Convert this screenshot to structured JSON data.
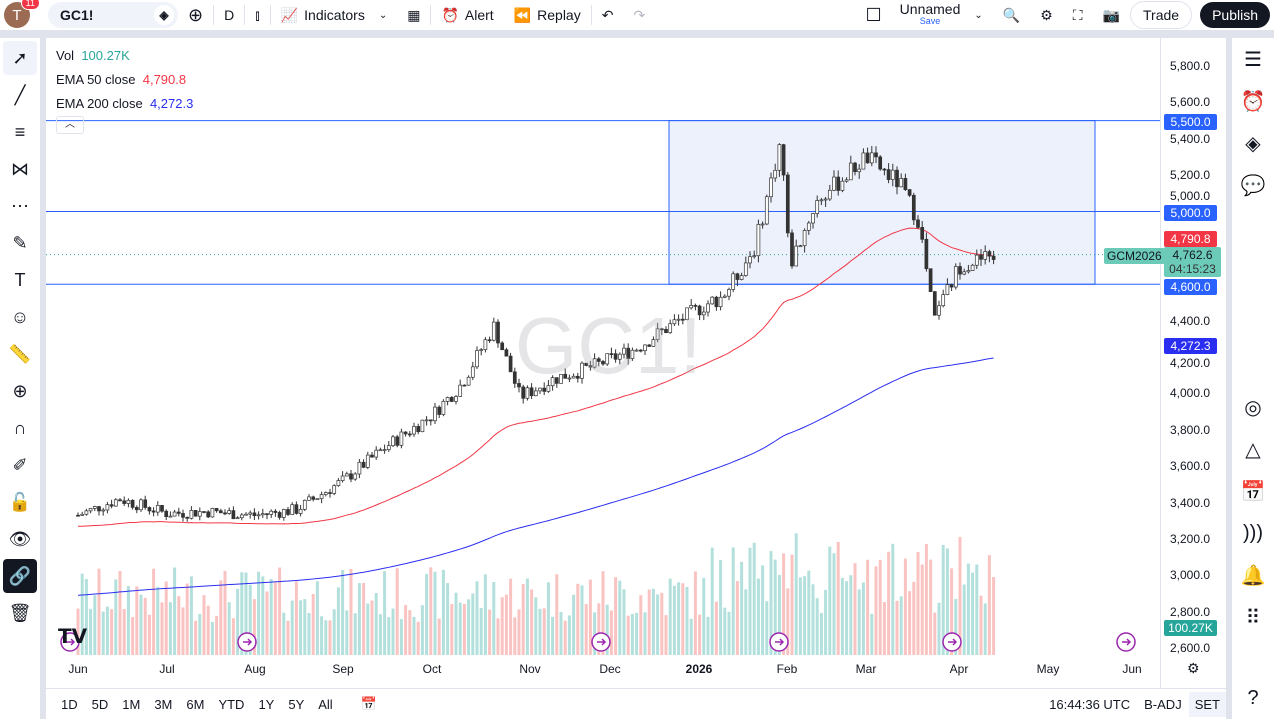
{
  "header": {
    "avatar_letter": "T",
    "notif_count": "11",
    "symbol": "GC1!",
    "interval": "D",
    "indicators": "Indicators",
    "alert": "Alert",
    "replay": "Replay",
    "layout_name": "Unnamed",
    "save": "Save",
    "trade": "Trade",
    "publish": "Publish"
  },
  "legend": {
    "vol_label": "Vol",
    "vol_value": "100.27K",
    "ema50_label": "EMA 50 close",
    "ema50_value": "4,790.8",
    "ema200_label": "EMA 200 close",
    "ema200_value": "4,272.3"
  },
  "watermark": "GC1!",
  "colors": {
    "up": "#26a69a",
    "down": "#ef5350",
    "ema50": "#f23645",
    "ema200": "#2a2ef0",
    "hline": "#2962ff",
    "box_fill": "#e8edfb"
  },
  "price_axis": {
    "ticks": [
      "5,800.0",
      "5,600.0",
      "5,400.0",
      "5,200.0",
      "5,000.0",
      "4,400.0",
      "4,200.0",
      "4,000.0",
      "3,800.0",
      "3,600.0",
      "3,400.0",
      "3,200.0",
      "3,000.0",
      "2,800.0",
      "2,600.0"
    ],
    "labels": {
      "l5500": "5,500.0",
      "l5000": "5,000.0",
      "ema50": "4,790.8",
      "contract": "GCM2026",
      "last": "4,762.6",
      "countdown": "04:15:23",
      "l4600": "4,600.0",
      "ema200": "4,272.3",
      "vol": "100.27K"
    }
  },
  "time_axis": [
    "Jun",
    "Jul",
    "Aug",
    "Sep",
    "Oct",
    "Nov",
    "Dec",
    "2026",
    "Feb",
    "Mar",
    "Apr",
    "May",
    "Jun"
  ],
  "bottom": {
    "ranges": [
      "1D",
      "5D",
      "1M",
      "3M",
      "6M",
      "YTD",
      "1Y",
      "5Y",
      "All"
    ],
    "clock": "16:44:36 UTC",
    "badj": "B-ADJ",
    "set": "SET"
  },
  "chart_data": {
    "type": "candlestick",
    "symbol": "GC1!",
    "ylim": [
      2600,
      5800
    ],
    "key_closes": [
      [
        "Jun 1",
        3330
      ],
      [
        "Jun 15",
        3420
      ],
      [
        "Jul 1",
        3340
      ],
      [
        "Jul 15",
        3350
      ],
      [
        "Aug 1",
        3330
      ],
      [
        "Aug 15",
        3360
      ],
      [
        "Sep 1",
        3520
      ],
      [
        "Sep 15",
        3700
      ],
      [
        "Oct 1",
        3880
      ],
      [
        "Oct 10",
        4050
      ],
      [
        "Oct 20",
        4370
      ],
      [
        "Oct 28",
        3980
      ],
      [
        "Nov 10",
        4080
      ],
      [
        "Nov 25",
        4150
      ],
      [
        "Dec 10",
        4250
      ],
      [
        "Dec 24",
        4400
      ],
      [
        "Jan 10",
        4550
      ],
      [
        "Jan 20",
        4800
      ],
      [
        "Jan 29",
        5400
      ],
      [
        "Feb 2",
        4700
      ],
      [
        "Feb 12",
        5050
      ],
      [
        "Mar 1",
        5300
      ],
      [
        "Mar 12",
        5150
      ],
      [
        "Mar 18",
        4950
      ],
      [
        "Mar 23",
        4400
      ],
      [
        "Apr 1",
        4700
      ],
      [
        "Apr 13",
        4762.6
      ]
    ],
    "hlines": [
      5500,
      5000,
      4600
    ],
    "rectangle": {
      "from": "Dec 24",
      "to": "Apr 30",
      "top": 5500,
      "bottom": 4600
    },
    "ema50_last": 4790.8,
    "ema200_last": 4272.3,
    "last": 4762.6,
    "volume_last": "100.27K"
  }
}
